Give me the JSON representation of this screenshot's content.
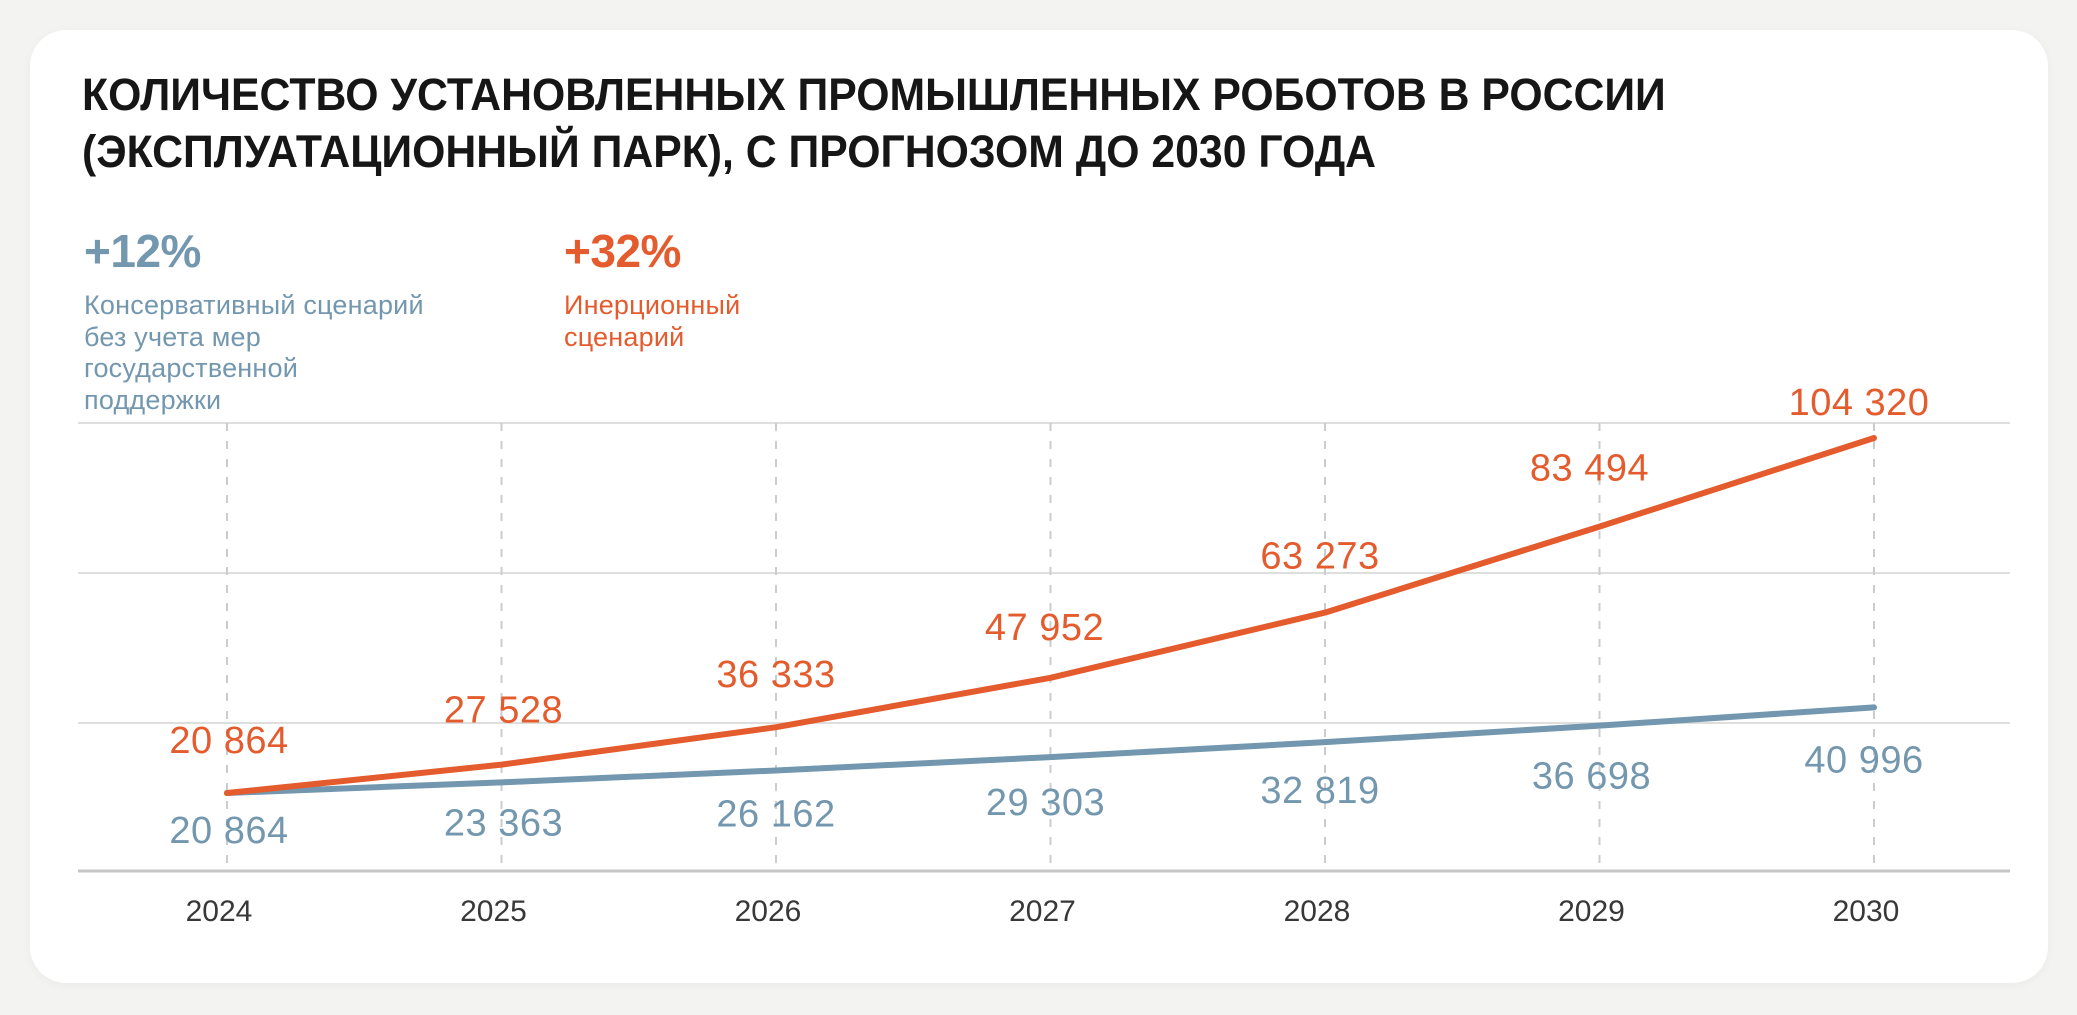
{
  "page": {
    "background_color": "#f3f3f1",
    "card_color": "#ffffff"
  },
  "header": {
    "title": "КОЛИЧЕСТВО УСТАНОВЛЕННЫХ ПРОМЫШЛЕННЫХ РОБОТОВ В РОССИИ\n(ЭКСПЛУАТАЦИОННЫЙ ПАРК), С ПРОГНОЗОМ ДО 2030 ГОДА"
  },
  "legend": {
    "conservative": {
      "growth": "+12%",
      "label": "Консервативный сценарий\nбез учета мер\nгосударственной\nподдержки",
      "color": "#7397ae"
    },
    "inertial": {
      "growth": "+32%",
      "label": "Инерционный\nсценарий",
      "color": "#e45b2d"
    }
  },
  "chart_data": {
    "type": "line",
    "title": "КОЛИЧЕСТВО УСТАНОВЛЕННЫХ ПРОМЫШЛЕННЫХ РОБОТОВ В РОССИИ (ЭКСПЛУАТАЦИОННЫЙ ПАРК), С ПРОГНОЗОМ ДО 2030 ГОДА",
    "x": [
      2024,
      2025,
      2026,
      2027,
      2028,
      2029,
      2030
    ],
    "series": [
      {
        "id": "conservative",
        "name": "Консервативный сценарий без учета мер государственной поддержки",
        "growth": "+12%",
        "color": "#7397ae",
        "label_position": "below",
        "values": [
          20864,
          23363,
          26162,
          29303,
          32819,
          36698,
          40996
        ]
      },
      {
        "id": "inertial",
        "name": "Инерционный сценарий",
        "growth": "+32%",
        "color": "#e45b2d",
        "label_position": "above",
        "values": [
          20864,
          27528,
          36333,
          47952,
          63273,
          83494,
          104320
        ]
      }
    ],
    "ylim": [
      0,
      105000
    ],
    "y_axis_labels_visible": false,
    "grid": {
      "horizontal": "solid",
      "vertical": "dashed"
    },
    "legend_position": "top-left",
    "data_labels": true,
    "grid_color": "#dedede",
    "axis_color": "#c6c6c6",
    "dash_color": "#c9cdd0",
    "tick_color": "#383838"
  }
}
